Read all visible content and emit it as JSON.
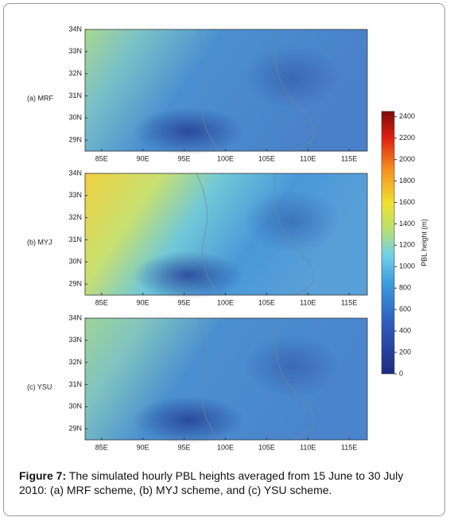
{
  "panels": [
    {
      "label": "(a) MRF"
    },
    {
      "label": "(b) MYJ"
    },
    {
      "label": "(c) YSU"
    }
  ],
  "lon_axis": {
    "lim": [
      83,
      117.2
    ],
    "ticks": [
      {
        "value": 85,
        "label": "85E"
      },
      {
        "value": 90,
        "label": "90E"
      },
      {
        "value": 95,
        "label": "95E"
      },
      {
        "value": 100,
        "label": "100E"
      },
      {
        "value": 105,
        "label": "105E"
      },
      {
        "value": 110,
        "label": "110E"
      },
      {
        "value": 115,
        "label": "115E"
      }
    ]
  },
  "lat_axis": {
    "lim": [
      28.5,
      34
    ],
    "ticks": [
      {
        "value": 29,
        "label": "29N"
      },
      {
        "value": 30,
        "label": "30N"
      },
      {
        "value": 31,
        "label": "31N"
      },
      {
        "value": 32,
        "label": "32N"
      },
      {
        "value": 33,
        "label": "33N"
      },
      {
        "value": 34,
        "label": "34N"
      }
    ]
  },
  "colorbar": {
    "label": "PBL height (m)",
    "lim": [
      0,
      2450
    ],
    "ticks": [
      0,
      200,
      400,
      600,
      800,
      1000,
      1200,
      1400,
      1600,
      1800,
      2000,
      2200,
      2400
    ]
  },
  "caption": {
    "label": "Figure 7:",
    "text": "The simulated hourly PBL heights averaged from 15 June to 30 July 2010: (a) MRF scheme, (b) MYJ scheme, and (c) YSU scheme."
  }
}
